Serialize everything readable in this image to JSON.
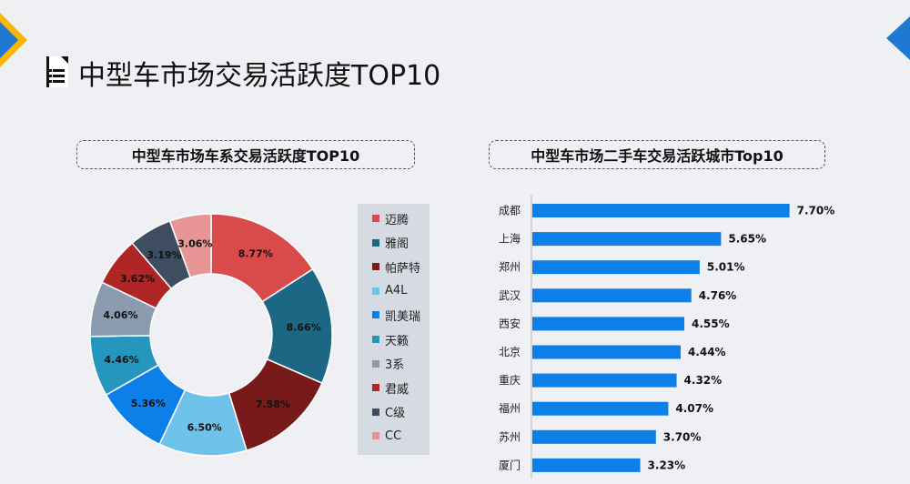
{
  "page": {
    "title": "中型车市场交易活跃度TOP10"
  },
  "chart_data": [
    {
      "type": "pie",
      "title": "中型车市场车系交易活跃度TOP10",
      "donut": true,
      "legend_position": "right",
      "categories": [
        "迈腾",
        "雅阁",
        "帕萨特",
        "A4L",
        "凯美瑞",
        "天籁",
        "3系",
        "君威",
        "C级",
        "CC"
      ],
      "values": [
        8.77,
        8.66,
        7.58,
        6.5,
        5.36,
        4.46,
        4.06,
        3.62,
        3.19,
        3.06
      ],
      "labels": [
        "8.77%",
        "8.66%",
        "7.58%",
        "6.50%",
        "5.36%",
        "4.46%",
        "4.06%",
        "3.62%",
        "3.19%",
        "3.06%"
      ],
      "colors": [
        "#d94a4b",
        "#1c6784",
        "#781a1a",
        "#6fc3ea",
        "#0d7fe8",
        "#2596be",
        "#8a9bb0",
        "#b02525",
        "#3e4e60",
        "#e89595"
      ]
    },
    {
      "type": "bar",
      "orientation": "horizontal",
      "title": "中型车市场二手车交易活跃城市Top10",
      "categories": [
        "成都",
        "上海",
        "郑州",
        "武汉",
        "西安",
        "北京",
        "重庆",
        "福州",
        "苏州",
        "厦门"
      ],
      "values": [
        7.7,
        5.65,
        5.01,
        4.76,
        4.55,
        4.44,
        4.32,
        4.07,
        3.7,
        3.23
      ],
      "labels": [
        "7.70%",
        "5.65%",
        "5.01%",
        "4.76%",
        "4.55%",
        "4.44%",
        "4.32%",
        "4.07%",
        "3.70%",
        "3.23%"
      ],
      "color": "#0d7fe8",
      "xlim": [
        0,
        9.4
      ]
    }
  ]
}
